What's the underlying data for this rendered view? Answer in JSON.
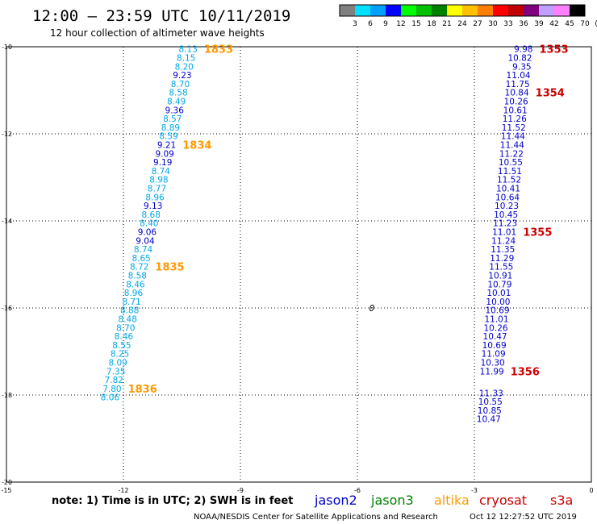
{
  "header": {
    "title": "12:00 – 23:59 UTC 10/11/2019",
    "subtitle": "12 hour collection of altimeter wave heights"
  },
  "legend_scale": {
    "labels": [
      "3",
      "6",
      "9",
      "12",
      "15",
      "18",
      "21",
      "24",
      "27",
      "30",
      "33",
      "36",
      "39",
      "42",
      "45",
      "70",
      "(ft)"
    ],
    "colors": [
      "#808080",
      "#00e0ff",
      "#00a0ff",
      "#0000ff",
      "#00ff00",
      "#00c000",
      "#008000",
      "#ffff00",
      "#ffc000",
      "#ff8000",
      "#ff0000",
      "#c00000",
      "#800080",
      "#c0a0ff",
      "#ff80ff",
      "#000000"
    ]
  },
  "satellites": [
    {
      "name": "jason2",
      "color": "#0000cc"
    },
    {
      "name": "jason3",
      "color": "#008000"
    },
    {
      "name": "altika",
      "color": "#ff9900"
    },
    {
      "name": "cryosat",
      "color": "#cc0000"
    },
    {
      "name": "s3a",
      "color": "#cc0000"
    }
  ],
  "footer": {
    "note": "note: 1) Time is in UTC; 2) SWH is in feet",
    "credit": "NOAA/NESDIS Center for Satellite Applications and Research",
    "timestamp": "Oct 12 12:27:52 UTC 2019"
  },
  "colors": {
    "light_blue": "#00a8e8",
    "dark_blue": "#0000cc",
    "orange": "#ff9900",
    "red": "#cc0000",
    "grid": "#000000"
  },
  "chart_data": {
    "type": "scatter",
    "title": "12:00 – 23:59 UTC 10/11/2019",
    "xlim": [
      -15,
      0
    ],
    "ylim": [
      -20,
      -10
    ],
    "x_ticks": [
      -15,
      -12,
      -9,
      -6,
      -3,
      0
    ],
    "y_ticks": [
      -10,
      -12,
      -14,
      -16,
      -18,
      -20
    ],
    "grid": true,
    "center_marker": {
      "x": -5.7,
      "y": -16.0,
      "label": "0"
    },
    "series": [
      {
        "name": "altika",
        "points": [
          {
            "x": -10.1,
            "y": -10.05,
            "v": "8.13",
            "c": "light_blue"
          },
          {
            "x": -10.15,
            "y": -10.25,
            "v": "8.15",
            "c": "light_blue"
          },
          {
            "x": -10.2,
            "y": -10.45,
            "v": "8.20",
            "c": "light_blue"
          },
          {
            "x": -10.25,
            "y": -10.65,
            "v": "9.23",
            "c": "dark_blue"
          },
          {
            "x": -10.3,
            "y": -10.85,
            "v": "8.70",
            "c": "light_blue"
          },
          {
            "x": -10.35,
            "y": -11.05,
            "v": "8.58",
            "c": "light_blue"
          },
          {
            "x": -10.4,
            "y": -11.25,
            "v": "8.49",
            "c": "light_blue"
          },
          {
            "x": -10.45,
            "y": -11.45,
            "v": "9.36",
            "c": "dark_blue"
          },
          {
            "x": -10.5,
            "y": -11.65,
            "v": "8.57",
            "c": "light_blue"
          },
          {
            "x": -10.55,
            "y": -11.85,
            "v": "8.89",
            "c": "light_blue"
          },
          {
            "x": -10.6,
            "y": -12.05,
            "v": "8.59",
            "c": "light_blue"
          },
          {
            "x": -10.65,
            "y": -12.25,
            "v": "9.21",
            "c": "dark_blue"
          },
          {
            "x": -10.7,
            "y": -12.45,
            "v": "9.09",
            "c": "dark_blue"
          },
          {
            "x": -10.75,
            "y": -12.65,
            "v": "9.19",
            "c": "dark_blue"
          },
          {
            "x": -10.8,
            "y": -12.85,
            "v": "8.74",
            "c": "light_blue"
          },
          {
            "x": -10.85,
            "y": -13.05,
            "v": "8.98",
            "c": "light_blue"
          },
          {
            "x": -10.9,
            "y": -13.25,
            "v": "8.77",
            "c": "light_blue"
          },
          {
            "x": -10.95,
            "y": -13.45,
            "v": "8.96",
            "c": "light_blue"
          },
          {
            "x": -11.0,
            "y": -13.65,
            "v": "9.13",
            "c": "dark_blue"
          },
          {
            "x": -11.05,
            "y": -13.85,
            "v": "8.68",
            "c": "light_blue"
          },
          {
            "x": -11.1,
            "y": -14.05,
            "v": "8.40",
            "c": "light_blue"
          },
          {
            "x": -11.15,
            "y": -14.25,
            "v": "9.06",
            "c": "dark_blue"
          },
          {
            "x": -11.2,
            "y": -14.45,
            "v": "9.04",
            "c": "dark_blue"
          },
          {
            "x": -11.25,
            "y": -14.65,
            "v": "8.74",
            "c": "light_blue"
          },
          {
            "x": -11.3,
            "y": -14.85,
            "v": "8.65",
            "c": "light_blue"
          },
          {
            "x": -11.35,
            "y": -15.05,
            "v": "8.72",
            "c": "light_blue"
          },
          {
            "x": -11.4,
            "y": -15.25,
            "v": "8.58",
            "c": "light_blue"
          },
          {
            "x": -11.45,
            "y": -15.45,
            "v": "8.46",
            "c": "light_blue"
          },
          {
            "x": -11.5,
            "y": -15.65,
            "v": "8.96",
            "c": "light_blue"
          },
          {
            "x": -11.55,
            "y": -15.85,
            "v": "8.71",
            "c": "light_blue"
          },
          {
            "x": -11.6,
            "y": -16.05,
            "v": "8.88",
            "c": "light_blue"
          },
          {
            "x": -11.65,
            "y": -16.25,
            "v": "8.48",
            "c": "light_blue"
          },
          {
            "x": -11.7,
            "y": -16.45,
            "v": "8.70",
            "c": "light_blue"
          },
          {
            "x": -11.75,
            "y": -16.65,
            "v": "8.46",
            "c": "light_blue"
          },
          {
            "x": -11.8,
            "y": -16.85,
            "v": "8.55",
            "c": "light_blue"
          },
          {
            "x": -11.85,
            "y": -17.05,
            "v": "8.25",
            "c": "light_blue"
          },
          {
            "x": -11.9,
            "y": -17.25,
            "v": "8.09",
            "c": "light_blue"
          },
          {
            "x": -11.95,
            "y": -17.45,
            "v": "7.35",
            "c": "light_blue"
          },
          {
            "x": -12.0,
            "y": -17.65,
            "v": "7.82",
            "c": "light_blue"
          },
          {
            "x": -12.05,
            "y": -17.85,
            "v": "7.80",
            "c": "light_blue"
          },
          {
            "x": -12.1,
            "y": -18.05,
            "v": "8.06",
            "c": "light_blue"
          }
        ],
        "time_labels": [
          {
            "x": -10.1,
            "y": -10.05,
            "label": "1833"
          },
          {
            "x": -10.65,
            "y": -12.25,
            "label": "1834"
          },
          {
            "x": -11.35,
            "y": -15.05,
            "label": "1835"
          },
          {
            "x": -12.05,
            "y": -17.85,
            "label": "1836"
          }
        ]
      },
      {
        "name": "s3a",
        "points": [
          {
            "x": -1.5,
            "y": -10.05,
            "v": "9.98",
            "c": "dark_blue"
          },
          {
            "x": -1.52,
            "y": -10.25,
            "v": "10.82",
            "c": "dark_blue"
          },
          {
            "x": -1.54,
            "y": -10.45,
            "v": "9.35",
            "c": "dark_blue"
          },
          {
            "x": -1.56,
            "y": -10.65,
            "v": "11.04",
            "c": "dark_blue"
          },
          {
            "x": -1.58,
            "y": -10.85,
            "v": "11.75",
            "c": "dark_blue"
          },
          {
            "x": -1.6,
            "y": -11.05,
            "v": "10.84",
            "c": "dark_blue"
          },
          {
            "x": -1.62,
            "y": -11.25,
            "v": "10.26",
            "c": "dark_blue"
          },
          {
            "x": -1.64,
            "y": -11.45,
            "v": "10.61",
            "c": "dark_blue"
          },
          {
            "x": -1.66,
            "y": -11.65,
            "v": "11.26",
            "c": "dark_blue"
          },
          {
            "x": -1.68,
            "y": -11.85,
            "v": "11.52",
            "c": "dark_blue"
          },
          {
            "x": -1.7,
            "y": -12.05,
            "v": "11.44",
            "c": "dark_blue"
          },
          {
            "x": -1.72,
            "y": -12.25,
            "v": "11.44",
            "c": "dark_blue"
          },
          {
            "x": -1.74,
            "y": -12.45,
            "v": "11.22",
            "c": "dark_blue"
          },
          {
            "x": -1.76,
            "y": -12.65,
            "v": "10.55",
            "c": "dark_blue"
          },
          {
            "x": -1.78,
            "y": -12.85,
            "v": "11.51",
            "c": "dark_blue"
          },
          {
            "x": -1.8,
            "y": -13.05,
            "v": "11.52",
            "c": "dark_blue"
          },
          {
            "x": -1.82,
            "y": -13.25,
            "v": "10.41",
            "c": "dark_blue"
          },
          {
            "x": -1.84,
            "y": -13.45,
            "v": "10.64",
            "c": "dark_blue"
          },
          {
            "x": -1.86,
            "y": -13.65,
            "v": "10.23",
            "c": "dark_blue"
          },
          {
            "x": -1.88,
            "y": -13.85,
            "v": "10.45",
            "c": "dark_blue"
          },
          {
            "x": -1.9,
            "y": -14.05,
            "v": "11.23",
            "c": "dark_blue"
          },
          {
            "x": -1.92,
            "y": -14.25,
            "v": "11.01",
            "c": "dark_blue"
          },
          {
            "x": -1.94,
            "y": -14.45,
            "v": "11.24",
            "c": "dark_blue"
          },
          {
            "x": -1.96,
            "y": -14.65,
            "v": "11.35",
            "c": "dark_blue"
          },
          {
            "x": -1.98,
            "y": -14.85,
            "v": "11.29",
            "c": "dark_blue"
          },
          {
            "x": -2.0,
            "y": -15.05,
            "v": "11.55",
            "c": "dark_blue"
          },
          {
            "x": -2.02,
            "y": -15.25,
            "v": "10.91",
            "c": "dark_blue"
          },
          {
            "x": -2.04,
            "y": -15.45,
            "v": "10.79",
            "c": "dark_blue"
          },
          {
            "x": -2.06,
            "y": -15.65,
            "v": "10.01",
            "c": "dark_blue"
          },
          {
            "x": -2.08,
            "y": -15.85,
            "v": "10.00",
            "c": "dark_blue"
          },
          {
            "x": -2.1,
            "y": -16.05,
            "v": "10.69",
            "c": "dark_blue"
          },
          {
            "x": -2.12,
            "y": -16.25,
            "v": "11.01",
            "c": "dark_blue"
          },
          {
            "x": -2.14,
            "y": -16.45,
            "v": "10.26",
            "c": "dark_blue"
          },
          {
            "x": -2.16,
            "y": -16.65,
            "v": "10.47",
            "c": "dark_blue"
          },
          {
            "x": -2.18,
            "y": -16.85,
            "v": "10.69",
            "c": "dark_blue"
          },
          {
            "x": -2.2,
            "y": -17.05,
            "v": "11.09",
            "c": "dark_blue"
          },
          {
            "x": -2.22,
            "y": -17.25,
            "v": "10.30",
            "c": "dark_blue"
          },
          {
            "x": -2.24,
            "y": -17.45,
            "v": "11.99",
            "c": "dark_blue"
          },
          {
            "x": -2.26,
            "y": -17.95,
            "v": "11.33",
            "c": "dark_blue"
          },
          {
            "x": -2.28,
            "y": -18.15,
            "v": "10.55",
            "c": "dark_blue"
          },
          {
            "x": -2.3,
            "y": -18.35,
            "v": "10.85",
            "c": "dark_blue"
          },
          {
            "x": -2.32,
            "y": -18.55,
            "v": "10.47",
            "c": "dark_blue"
          }
        ],
        "time_labels": [
          {
            "x": -1.5,
            "y": -10.05,
            "label": "1353"
          },
          {
            "x": -1.6,
            "y": -11.05,
            "label": "1354"
          },
          {
            "x": -1.92,
            "y": -14.25,
            "label": "1355"
          },
          {
            "x": -2.24,
            "y": -17.45,
            "label": "1356"
          }
        ]
      }
    ]
  }
}
